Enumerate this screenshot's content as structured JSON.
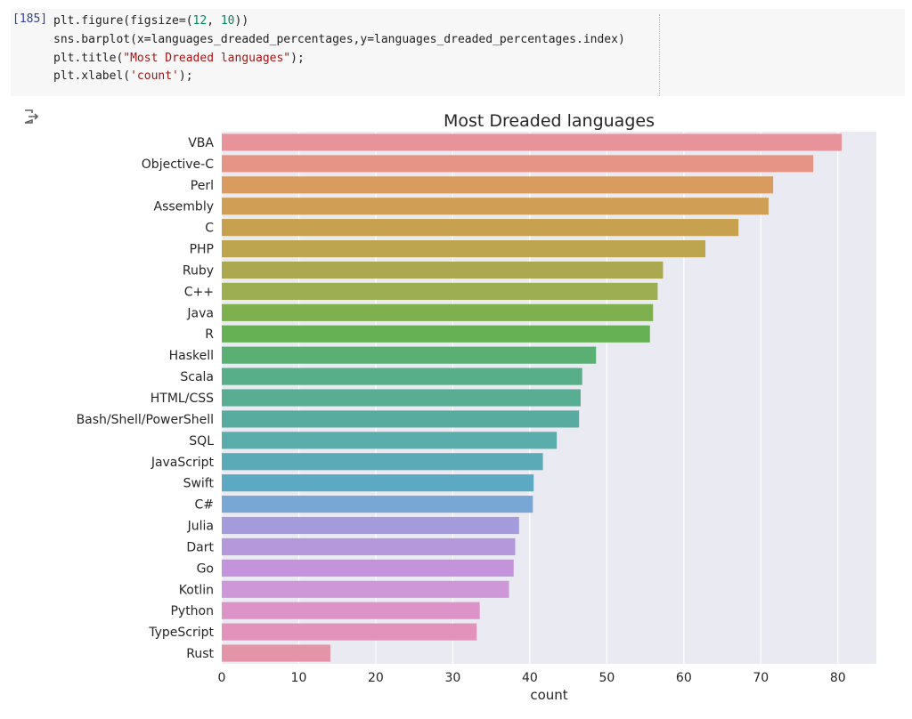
{
  "cell": {
    "exec_count": "[185]",
    "code_lines": [
      [
        {
          "t": "plt.figure(figsize=(",
          "c": ""
        },
        {
          "t": "12",
          "c": "num"
        },
        {
          "t": ", ",
          "c": ""
        },
        {
          "t": "10",
          "c": "num"
        },
        {
          "t": "))",
          "c": ""
        }
      ],
      [
        {
          "t": "sns.barplot(x=languages_dreaded_percentages,y=languages_dreaded_percentages.index)",
          "c": ""
        }
      ],
      [
        {
          "t": "plt.title(",
          "c": ""
        },
        {
          "t": "\"Most Dreaded languages\"",
          "c": "str"
        },
        {
          "t": ");",
          "c": ""
        }
      ],
      [
        {
          "t": "plt.xlabel(",
          "c": ""
        },
        {
          "t": "'count'",
          "c": "str"
        },
        {
          "t": ");",
          "c": ""
        }
      ]
    ]
  },
  "output": {
    "icon": "output-arrow-icon"
  },
  "chart_data": {
    "type": "bar",
    "orientation": "horizontal",
    "title": "Most Dreaded languages",
    "xlabel": "count",
    "ylabel": "",
    "xlim": [
      0,
      85
    ],
    "xticks": [
      0,
      10,
      20,
      30,
      40,
      50,
      60,
      70,
      80
    ],
    "grid": true,
    "background": "#eaeaf2",
    "categories": [
      "VBA",
      "Objective-C",
      "Perl",
      "Assembly",
      "C",
      "PHP",
      "Ruby",
      "C++",
      "Java",
      "R",
      "Haskell",
      "Scala",
      "HTML/CSS",
      "Bash/Shell/PowerShell",
      "SQL",
      "JavaScript",
      "Swift",
      "C#",
      "Julia",
      "Dart",
      "Go",
      "Kotlin",
      "Python",
      "TypeScript",
      "Rust"
    ],
    "values": [
      80.5,
      76.8,
      71.6,
      71.0,
      67.1,
      62.8,
      57.3,
      56.6,
      56.0,
      55.6,
      48.6,
      46.8,
      46.6,
      46.4,
      43.5,
      41.7,
      40.5,
      40.4,
      38.6,
      38.1,
      37.9,
      37.3,
      33.5,
      33.1,
      14.1
    ],
    "colors": [
      "#e8939a",
      "#e59486",
      "#d99b5f",
      "#d09f55",
      "#c7a150",
      "#bda54f",
      "#aca84f",
      "#9dad51",
      "#7eb050",
      "#65b154",
      "#5ab073",
      "#58ae88",
      "#58ad93",
      "#57ab9f",
      "#59adab",
      "#5aabb7",
      "#5ca9c3",
      "#78a6d5",
      "#a39bdb",
      "#b597dc",
      "#c394dc",
      "#ce97d7",
      "#dc93c8",
      "#e292bb",
      "#e394a6"
    ]
  }
}
